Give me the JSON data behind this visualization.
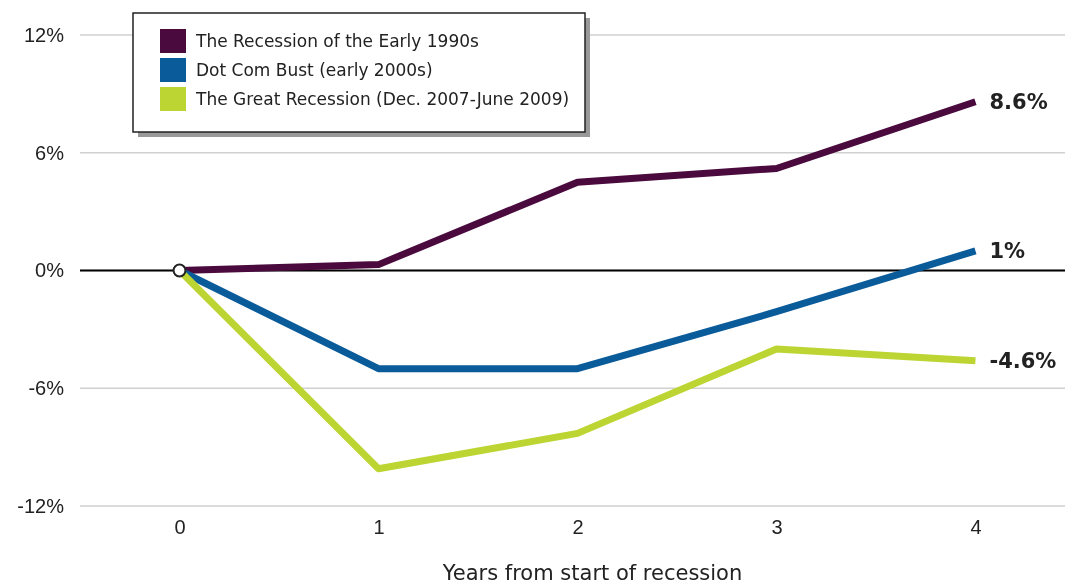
{
  "chart_data": {
    "type": "line",
    "xlabel": "Years from start of recession",
    "x": [
      0,
      1,
      2,
      3,
      4
    ],
    "xlim": [
      -0.5,
      4.45
    ],
    "xticks": [
      0,
      1,
      2,
      3,
      4
    ],
    "ylim": [
      -12,
      12
    ],
    "yticks": [
      {
        "value": -12,
        "label": "-12%"
      },
      {
        "value": -6,
        "label": "-6%"
      },
      {
        "value": 0,
        "label": "0%"
      },
      {
        "value": 6,
        "label": "6%"
      },
      {
        "value": 12,
        "label": "12%"
      }
    ],
    "grid": "y",
    "legend": "top left",
    "line_style": "solid",
    "marker": "none",
    "ref_lines": [
      {
        "axis": "y",
        "value": 0,
        "color": "#000000"
      }
    ],
    "series": [
      {
        "name": "The Recession of the Early 1990s",
        "color": "#4a0a3e",
        "values": [
          0,
          0.3,
          4.5,
          5.2,
          8.6
        ],
        "value_labels": [
          null,
          null,
          null,
          null,
          "8.6%"
        ]
      },
      {
        "name": "Dot Com Bust (early 2000s)",
        "color": "#0a5b9a",
        "values": [
          0,
          -5,
          -5,
          -2.1,
          1
        ],
        "value_labels": [
          null,
          null,
          null,
          null,
          "1%"
        ]
      },
      {
        "name": "The Great Recession (Dec. 2007-June 2009)",
        "color": "#bcd532",
        "values": [
          0,
          -10.1,
          -8.3,
          -4,
          -4.6
        ],
        "value_labels": [
          null,
          null,
          null,
          null,
          "-4.6%"
        ]
      },
      {
        "type": "scatter",
        "x": [
          0
        ],
        "values": [
          0
        ],
        "color": "#ffffff",
        "marker": "circle"
      }
    ]
  }
}
